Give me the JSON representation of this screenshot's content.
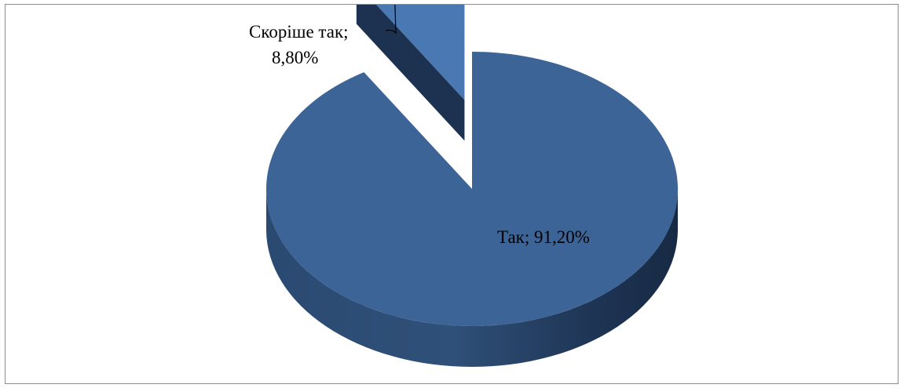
{
  "chart_data": {
    "type": "pie",
    "style": "3d-exploded",
    "categories": [
      "Скоріше так",
      "Так"
    ],
    "values": [
      8.8,
      91.2
    ],
    "labels": [
      {
        "lines": [
          "Скоріше так;",
          "8,80%"
        ]
      },
      {
        "lines": [
          "Так; 91,20%"
        ]
      }
    ],
    "exploded": [
      true,
      false
    ],
    "colors": {
      "top": "#3c6496",
      "top_exploded": "#4a78b2",
      "side_dark": "#1c3250",
      "side_light": "#2f5078"
    },
    "legend": "none"
  }
}
